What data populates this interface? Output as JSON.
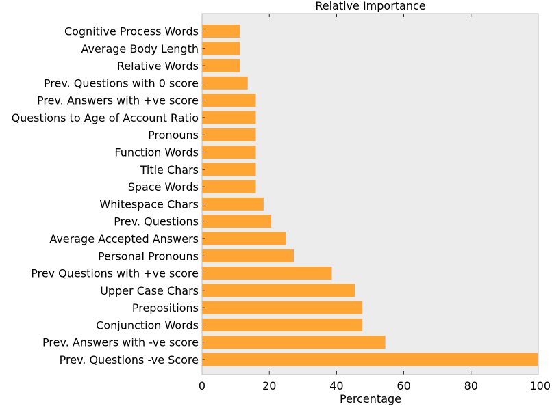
{
  "chart_data": {
    "type": "bar",
    "orientation": "horizontal",
    "title": "Relative Importance",
    "xlabel": "Percentage",
    "ylabel": "",
    "xlim": [
      0,
      100
    ],
    "xticks": [
      0,
      20,
      40,
      60,
      80,
      100
    ],
    "grid": false,
    "bar_color": "#ffa533",
    "plot_background": "#ececec",
    "categories": [
      "Cognitive Process Words",
      "Average Body Length",
      "Relative Words",
      "Prev. Questions with 0 score",
      "Prev. Answers with +ve score",
      "Questions to Age of Account Ratio",
      "Pronouns",
      "Function Words",
      "Title Chars",
      "Space Words",
      "Whitespace Chars",
      "Prev. Questions",
      "Average Accepted Answers",
      "Personal Pronouns",
      "Prev Questions with +ve score",
      "Upper Case Chars",
      "Prepositions",
      "Conjunction Words",
      "Prev. Answers with -ve score",
      "Prev. Questions -ve Score"
    ],
    "values": [
      11.3,
      11.3,
      11.3,
      13.6,
      16.0,
      16.0,
      16.0,
      16.0,
      16.0,
      16.0,
      18.3,
      20.6,
      25.0,
      27.3,
      38.6,
      45.5,
      47.7,
      47.7,
      54.5,
      100
    ]
  }
}
